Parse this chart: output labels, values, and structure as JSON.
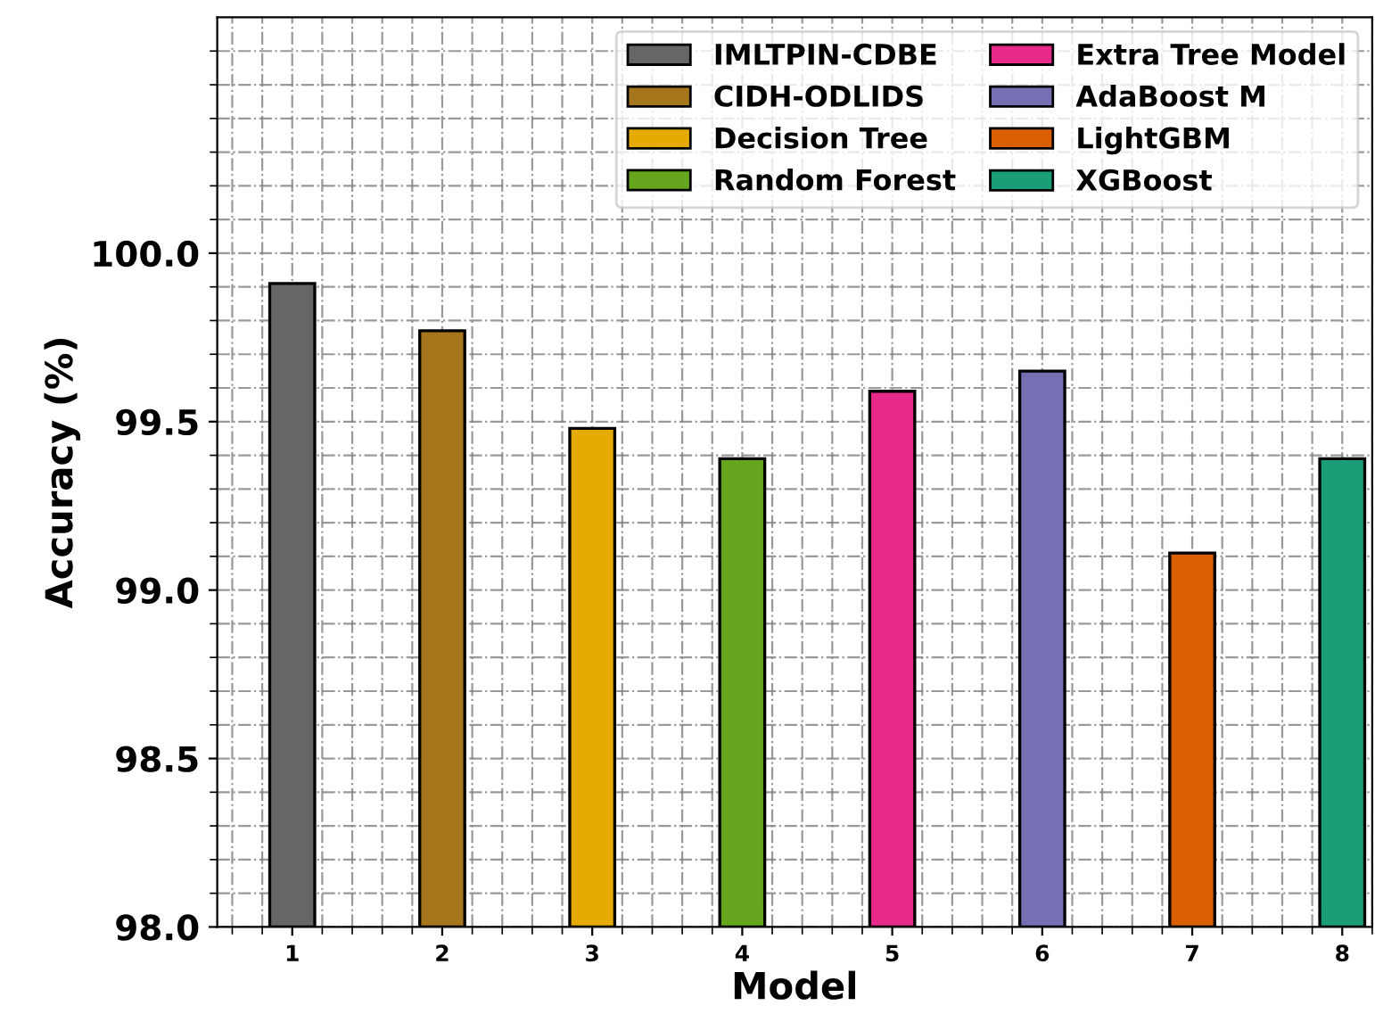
{
  "chart_data": {
    "type": "bar",
    "xlabel": "Model",
    "ylabel": "Accuracy (%)",
    "categories": [
      "1",
      "2",
      "3",
      "4",
      "5",
      "6",
      "7",
      "8"
    ],
    "series": [
      {
        "name": "IMLTPIN-CDBE",
        "color": "#666666",
        "values": [
          99.91,
          null,
          null,
          null,
          null,
          null,
          null,
          null
        ]
      },
      {
        "name": "CIDH-ODLIDS",
        "color": "#a6761d",
        "values": [
          null,
          99.77,
          null,
          null,
          null,
          null,
          null,
          null
        ]
      },
      {
        "name": "Decision Tree",
        "color": "#e6ab02",
        "values": [
          null,
          null,
          99.48,
          null,
          null,
          null,
          null,
          null
        ]
      },
      {
        "name": "Random Forest",
        "color": "#66a61e",
        "values": [
          null,
          null,
          null,
          99.39,
          null,
          null,
          null,
          null
        ]
      },
      {
        "name": "Extra Tree Model",
        "color": "#e7298a",
        "values": [
          null,
          null,
          null,
          null,
          99.59,
          null,
          null,
          null
        ]
      },
      {
        "name": "AdaBoost M",
        "color": "#7570b3",
        "values": [
          null,
          null,
          null,
          null,
          null,
          99.65,
          null,
          null
        ]
      },
      {
        "name": "LightGBM",
        "color": "#d95f02",
        "values": [
          null,
          null,
          null,
          null,
          null,
          null,
          99.11,
          null
        ]
      },
      {
        "name": "XGBoost",
        "color": "#1b9e77",
        "values": [
          null,
          null,
          null,
          null,
          null,
          null,
          null,
          99.39
        ]
      }
    ],
    "ylim": [
      98.0,
      100.7
    ],
    "yticks": [
      {
        "value": 98.0,
        "label": "98.0"
      },
      {
        "value": 98.1,
        "label": null
      },
      {
        "value": 98.2,
        "label": null
      },
      {
        "value": 98.3,
        "label": null
      },
      {
        "value": 98.4,
        "label": null
      },
      {
        "value": 98.5,
        "label": "98.5"
      },
      {
        "value": 98.6,
        "label": null
      },
      {
        "value": 98.7,
        "label": null
      },
      {
        "value": 98.8,
        "label": null
      },
      {
        "value": 98.9,
        "label": null
      },
      {
        "value": 99.0,
        "label": "99.0"
      },
      {
        "value": 99.1,
        "label": null
      },
      {
        "value": 99.2,
        "label": null
      },
      {
        "value": 99.3,
        "label": null
      },
      {
        "value": 99.4,
        "label": null
      },
      {
        "value": 99.5,
        "label": "99.5"
      },
      {
        "value": 99.6,
        "label": null
      },
      {
        "value": 99.7,
        "label": null
      },
      {
        "value": 99.8,
        "label": null
      },
      {
        "value": 99.9,
        "label": null
      },
      {
        "value": 100.0,
        "label": "100.0"
      },
      {
        "value": 100.1,
        "label": null
      },
      {
        "value": 100.2,
        "label": null
      },
      {
        "value": 100.3,
        "label": null
      },
      {
        "value": 100.4,
        "label": null
      },
      {
        "value": 100.5,
        "label": null
      },
      {
        "value": 100.6,
        "label": null
      }
    ],
    "grid": true,
    "legend": "top right"
  }
}
